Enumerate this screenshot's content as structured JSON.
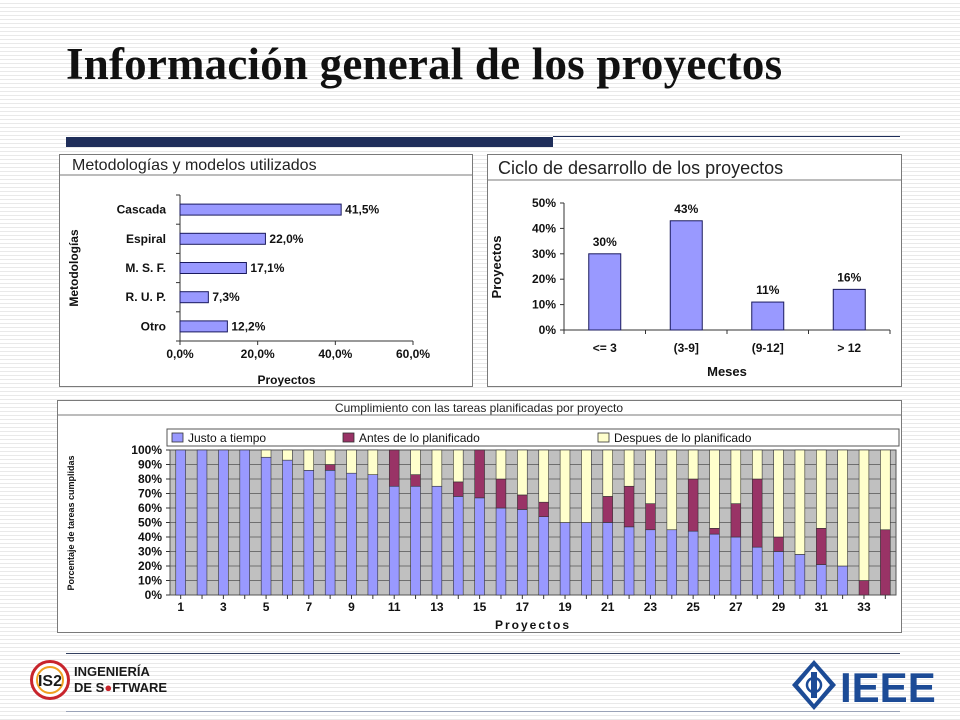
{
  "slide": {
    "title": "Información general de los proyectos"
  },
  "footer": {
    "logo_left_line1": "INGENIERÍA",
    "logo_left_line2": "DE S",
    "logo_left_line2b": "FTWARE",
    "logo_left_badge": "IS2",
    "logo_right": "IEEE"
  },
  "colors": {
    "bar_fill": "#9999ff",
    "bar_stroke": "#1a1a5e",
    "maroon": "#993366",
    "cream": "#ffffcc",
    "plot_grey": "#c0c0c0",
    "title_rule": "#1f2e5a"
  },
  "chart_data": [
    {
      "type": "bar",
      "orientation": "horizontal",
      "title": "Metodologías y modelos utilizados",
      "xlabel": "Proyectos",
      "ylabel": "Metodologías",
      "categories": [
        "Cascada",
        "Espiral",
        "M. S. F.",
        "R. U. P.",
        "Otro"
      ],
      "values": [
        41.5,
        22.0,
        17.1,
        7.3,
        12.2
      ],
      "value_labels": [
        "41,5%",
        "22,0%",
        "17,1%",
        "7,3%",
        "12,2%"
      ],
      "xlim": [
        0,
        60
      ],
      "xticks": [
        "0,0%",
        "20,0%",
        "40,0%",
        "60,0%"
      ],
      "grid": false
    },
    {
      "type": "bar",
      "title": "Ciclo de desarrollo de los proyectos",
      "xlabel": "Meses",
      "ylabel": "Proyectos",
      "categories": [
        "<= 3",
        "(3-9]",
        "(9-12]",
        "> 12"
      ],
      "values": [
        30,
        43,
        11,
        16
      ],
      "value_labels": [
        "30%",
        "43%",
        "11%",
        "16%"
      ],
      "ylim": [
        0,
        50
      ],
      "yticks": [
        "0%",
        "10%",
        "20%",
        "30%",
        "40%",
        "50%"
      ],
      "grid": false
    },
    {
      "type": "bar",
      "stacked": true,
      "title": "Cumplimiento con las tareas planificadas por proyecto",
      "xlabel": "Proyectos",
      "ylabel": "Porcentaje de tareas cumplidas",
      "legend_position": "top",
      "x": [
        1,
        2,
        3,
        4,
        5,
        6,
        7,
        8,
        9,
        10,
        11,
        12,
        13,
        14,
        15,
        16,
        17,
        18,
        19,
        20,
        21,
        22,
        23,
        24,
        25,
        26,
        27,
        28,
        29,
        30,
        31,
        32,
        33,
        34
      ],
      "xticks": [
        "1",
        "3",
        "5",
        "7",
        "9",
        "11",
        "13",
        "15",
        "17",
        "19",
        "21",
        "23",
        "25",
        "27",
        "29",
        "31",
        "33"
      ],
      "yticks": [
        "0%",
        "10%",
        "20%",
        "30%",
        "40%",
        "50%",
        "60%",
        "70%",
        "80%",
        "90%",
        "100%"
      ],
      "ylim": [
        0,
        100
      ],
      "grid": true,
      "series": [
        {
          "name": "Justo a tiempo",
          "values": [
            100,
            100,
            100,
            100,
            95,
            93,
            86,
            86,
            84,
            83,
            75,
            75,
            75,
            68,
            67,
            60,
            59,
            54,
            50,
            50,
            50,
            47,
            45,
            45,
            44,
            42,
            40,
            33,
            30,
            28,
            21,
            20,
            0,
            0
          ]
        },
        {
          "name": "Antes de lo planificado",
          "values": [
            0,
            0,
            0,
            0,
            0,
            0,
            0,
            4,
            0,
            0,
            25,
            8,
            0,
            10,
            33,
            20,
            10,
            10,
            0,
            0,
            18,
            28,
            18,
            0,
            36,
            4,
            23,
            47,
            10,
            0,
            25,
            0,
            10,
            45
          ]
        },
        {
          "name": "Despues de lo planificado",
          "values": [
            0,
            0,
            0,
            0,
            5,
            7,
            14,
            10,
            16,
            17,
            0,
            17,
            25,
            22,
            0,
            20,
            31,
            36,
            50,
            50,
            32,
            25,
            37,
            55,
            20,
            54,
            37,
            20,
            60,
            72,
            54,
            80,
            90,
            55
          ]
        }
      ]
    }
  ]
}
